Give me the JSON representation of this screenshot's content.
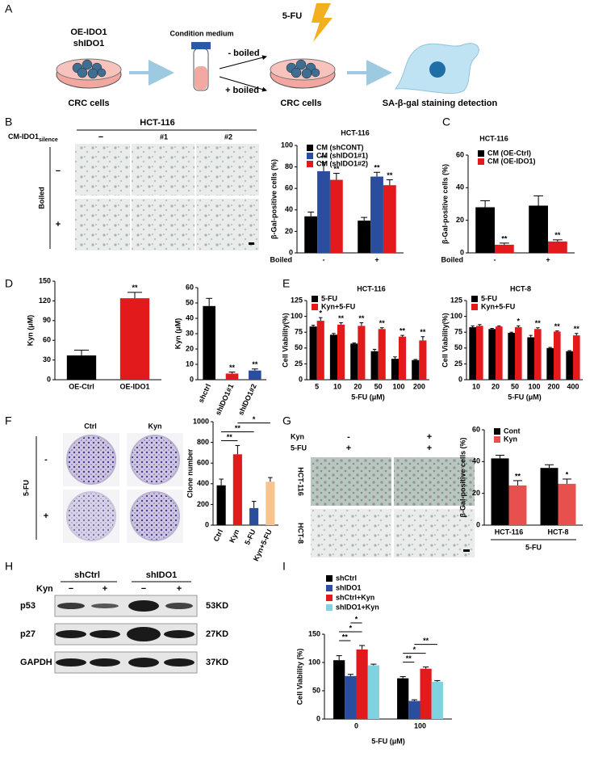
{
  "panel_labels": [
    "A",
    "B",
    "C",
    "D",
    "E",
    "F",
    "G",
    "H",
    "I"
  ],
  "schematic": {
    "treatment": [
      "OE-IDO1",
      "shIDO1"
    ],
    "medium": "Condition medium",
    "boiled": [
      "- boiled",
      "+ boiled"
    ],
    "drug": "5-FU",
    "cells": [
      "CRC cells",
      "CRC cells"
    ],
    "detection": "SA-β-gal staining detection"
  },
  "micrograph_b": {
    "title": "HCT-116",
    "row_title": "CM-IDO1",
    "row_title_sub": "silence",
    "columns": [
      "−",
      "#1",
      "#2"
    ],
    "side_label": "Boiled",
    "rows": [
      "−",
      "+"
    ]
  },
  "clone_f": {
    "columns": [
      "Ctrl",
      "Kyn"
    ],
    "side_label": "5-FU",
    "rows": [
      "-",
      "+"
    ]
  },
  "micrograph_g": {
    "treatments": [
      "Kyn",
      "5-FU"
    ],
    "columns": [
      [
        "-",
        "+"
      ],
      [
        "+",
        "+"
      ]
    ],
    "rows": [
      "HCT-116",
      "HCT-8"
    ]
  },
  "blot_h": {
    "groups": [
      "shCtrl",
      "shIDO1"
    ],
    "treatment": "Kyn",
    "lanes": [
      "−",
      "+",
      "−",
      "+"
    ],
    "proteins": [
      "p53",
      "p27",
      "GAPDH"
    ],
    "sizes": [
      "53KD",
      "27KD",
      "37KD"
    ]
  },
  "chart_data": [
    {
      "type": "bar",
      "title": "HCT-116",
      "ylabel": "β-Gal-positive cells (%)",
      "xlabel": "Boiled",
      "categories": [
        "-",
        "+"
      ],
      "series": [
        {
          "name": "CM (shCONT)",
          "color": "#000000",
          "values": [
            34,
            30
          ],
          "errors": [
            4,
            3
          ],
          "significance": [
            null,
            null
          ]
        },
        {
          "name": "CM (shIDO1#1)",
          "color": "#2a4d9e",
          "values": [
            76,
            71
          ],
          "errors": [
            8,
            4
          ],
          "significance": [
            "**",
            "**"
          ]
        },
        {
          "name": "CM (shIDO1#2)",
          "color": "#e31a1c",
          "values": [
            68,
            63
          ],
          "errors": [
            6,
            5
          ],
          "significance": [
            "**",
            "**"
          ]
        }
      ],
      "ylim": [
        0,
        100
      ],
      "yticks": [
        0,
        20,
        40,
        60,
        80,
        100
      ]
    },
    {
      "type": "bar",
      "title": "HCT-116",
      "ylabel": "β-Gal-positive cells (%)",
      "xlabel": "Boiled",
      "categories": [
        "-",
        "+"
      ],
      "series": [
        {
          "name": "CM (OE-Ctrl)",
          "color": "#000000",
          "values": [
            28,
            29
          ],
          "errors": [
            4,
            6
          ],
          "significance": [
            null,
            null
          ]
        },
        {
          "name": "CM (OE-IDO1)",
          "color": "#e31a1c",
          "values": [
            5,
            7
          ],
          "errors": [
            1,
            1
          ],
          "significance": [
            "**",
            "**"
          ]
        }
      ],
      "ylim": [
        0,
        60
      ],
      "yticks": [
        0,
        20,
        40,
        60
      ]
    },
    {
      "type": "bar",
      "ylabel": "Kyn (μM)",
      "categories": [
        "OE-Ctrl",
        "OE-IDO1"
      ],
      "values": [
        37,
        124
      ],
      "errors": [
        8,
        9
      ],
      "colors": [
        "#000000",
        "#e31a1c"
      ],
      "significance": [
        null,
        "**"
      ],
      "ylim": [
        0,
        150
      ],
      "yticks": [
        0,
        30,
        60,
        90,
        120,
        150
      ]
    },
    {
      "type": "bar",
      "ylabel": "Kyn (μM)",
      "categories": [
        "shctrl",
        "shIDO1#1",
        "shIDO1#2"
      ],
      "values": [
        48,
        4,
        6
      ],
      "errors": [
        5,
        1,
        1
      ],
      "colors": [
        "#000000",
        "#e31a1c",
        "#2a4d9e"
      ],
      "significance": [
        null,
        "**",
        "**"
      ],
      "ylim": [
        0,
        60
      ],
      "yticks": [
        0,
        10,
        20,
        30,
        40,
        50,
        60
      ]
    },
    {
      "type": "bar",
      "title": "HCT-116",
      "ylabel": "Cell Viability(%)",
      "xlabel": "5-FU (μM)",
      "categories": [
        "5",
        "10",
        "20",
        "50",
        "100",
        "200"
      ],
      "series": [
        {
          "name": "5-FU",
          "color": "#000000",
          "values": [
            84,
            71,
            57,
            45,
            33,
            31
          ],
          "errors": [
            2,
            2,
            1,
            3,
            3,
            1
          ],
          "significance": [
            null,
            null,
            null,
            null,
            null,
            null
          ]
        },
        {
          "name": "Kyn+5-FU",
          "color": "#e31a1c",
          "values": [
            93,
            87,
            85,
            80,
            68,
            62
          ],
          "errors": [
            5,
            3,
            5,
            2,
            2,
            6
          ],
          "significance": [
            "*",
            "**",
            "**",
            "**",
            "**",
            "**"
          ]
        }
      ],
      "ylim": [
        0,
        125
      ],
      "yticks": [
        0,
        25,
        50,
        75,
        100,
        125
      ]
    },
    {
      "type": "bar",
      "title": "HCT-8",
      "ylabel": "Cell Viability(%)",
      "xlabel": "5-FU (μM)",
      "categories": [
        "10",
        "20",
        "50",
        "100",
        "200",
        "400"
      ],
      "series": [
        {
          "name": "5-FU",
          "color": "#000000",
          "values": [
            83,
            80,
            74,
            67,
            50,
            45
          ],
          "errors": [
            2,
            1,
            1,
            3,
            1,
            1
          ],
          "significance": [
            null,
            null,
            null,
            null,
            null,
            null
          ]
        },
        {
          "name": "Kyn+5-FU",
          "color": "#e31a1c",
          "values": [
            85,
            84,
            83,
            80,
            76,
            70
          ],
          "errors": [
            2,
            1,
            2,
            2,
            1,
            3
          ],
          "significance": [
            null,
            null,
            "*",
            "**",
            "**",
            "**"
          ]
        }
      ],
      "ylim": [
        0,
        125
      ],
      "yticks": [
        0,
        25,
        50,
        75,
        100,
        125
      ]
    },
    {
      "type": "bar",
      "ylabel": "Clone number",
      "categories": [
        "Ctrl",
        "Kyn",
        "5-FU",
        "Kyn+5-FU"
      ],
      "values": [
        385,
        685,
        165,
        420
      ],
      "errors": [
        60,
        85,
        65,
        40
      ],
      "colors": [
        "#000000",
        "#e31a1c",
        "#2a4d9e",
        "#f7c48e"
      ],
      "comparisons": [
        {
          "pair": [
            0,
            1
          ],
          "label": "**"
        },
        {
          "pair": [
            0,
            2
          ],
          "label": "**"
        },
        {
          "pair": [
            1,
            3
          ],
          "label": "*"
        }
      ],
      "ylim": [
        0,
        1000
      ],
      "yticks": [
        0,
        200,
        400,
        600,
        800,
        1000
      ]
    },
    {
      "type": "bar",
      "ylabel": "β-Gal-positive cells (%)",
      "xlabel": "5-FU",
      "categories": [
        "HCT-116",
        "HCT-8"
      ],
      "series": [
        {
          "name": "Cont",
          "color": "#000000",
          "values": [
            42,
            36
          ],
          "errors": [
            2,
            2
          ],
          "significance": [
            null,
            null
          ]
        },
        {
          "name": "Kyn",
          "color": "#e8504e",
          "values": [
            25,
            26
          ],
          "errors": [
            3,
            3
          ],
          "significance": [
            "**",
            "*"
          ]
        }
      ],
      "ylim": [
        0,
        60
      ],
      "yticks": [
        0,
        20,
        40,
        60
      ]
    },
    {
      "type": "bar",
      "ylabel": "Cell Viability (%)",
      "xlabel": "5-FU (μM)",
      "categories": [
        "0",
        "100"
      ],
      "series": [
        {
          "name": "shCtrl",
          "color": "#000000",
          "values": [
            104,
            72
          ],
          "errors": [
            8,
            3
          ]
        },
        {
          "name": "shIDO1",
          "color": "#2a4d9e",
          "values": [
            76,
            32
          ],
          "errors": [
            3,
            2
          ]
        },
        {
          "name": "shCtrl+Kyn",
          "color": "#e31a1c",
          "values": [
            123,
            89
          ],
          "errors": [
            7,
            3
          ]
        },
        {
          "name": "shIDO1+Kyn",
          "color": "#7fd3df",
          "values": [
            95,
            66
          ],
          "errors": [
            2,
            2
          ]
        }
      ],
      "comparisons": [
        {
          "group": 0,
          "pair": [
            0,
            1
          ],
          "label": "**"
        },
        {
          "group": 0,
          "pair": [
            0,
            2
          ],
          "label": "*"
        },
        {
          "group": 0,
          "pair": [
            1,
            2
          ],
          "label": "*"
        },
        {
          "group": 1,
          "pair": [
            0,
            1
          ],
          "label": "**"
        },
        {
          "group": 1,
          "pair": [
            0,
            2
          ],
          "label": "*"
        },
        {
          "group": 1,
          "pair": [
            1,
            3
          ],
          "label": "**"
        }
      ],
      "ylim": [
        0,
        150
      ],
      "yticks": [
        0,
        50,
        100,
        150
      ]
    }
  ]
}
